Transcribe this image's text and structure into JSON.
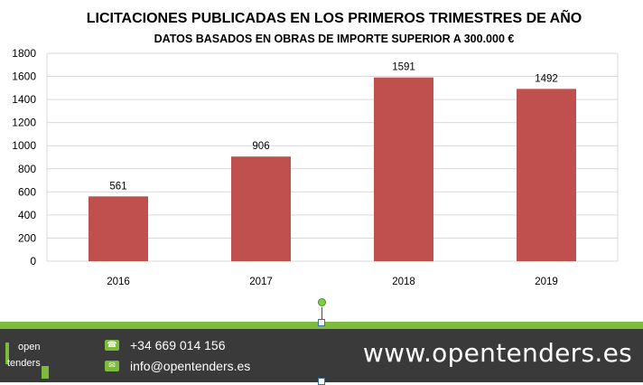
{
  "chart_data": {
    "type": "bar",
    "title": "LICITACIONES PUBLICADAS EN LOS PRIMEROS TRIMESTRES DE AÑO",
    "subtitle": "DATOS BASADOS EN OBRAS DE IMPORTE SUPERIOR A 300.000 €",
    "categories": [
      "2016",
      "2017",
      "2018",
      "2019"
    ],
    "values": [
      561,
      906,
      1591,
      1492
    ],
    "data_labels": [
      "561",
      "906",
      "1591",
      "1492"
    ],
    "ylim": [
      0,
      1800
    ],
    "yticks": [
      "0",
      "200",
      "400",
      "600",
      "800",
      "1000",
      "1200",
      "1400",
      "1600",
      "1800"
    ],
    "grid": true,
    "bar_color": "#c0504d",
    "xlabel": "",
    "ylabel": ""
  },
  "footer": {
    "phone": "+34 669 014 156",
    "email": "info@opentenders.es",
    "website": "www.opentenders.es",
    "logo_line1": "open",
    "logo_line2": "tenders",
    "accent_color": "#7dbb3b",
    "background_color": "#3a3a3a",
    "phone_icon": "phone-icon",
    "email_icon": "envelope-icon"
  }
}
